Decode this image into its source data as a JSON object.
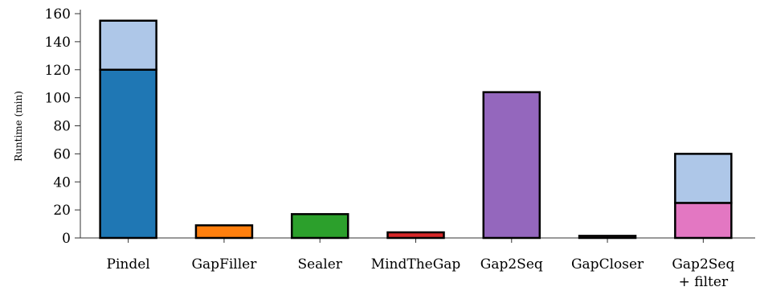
{
  "chart_data": {
    "type": "bar",
    "stacked": true,
    "title": "",
    "xlabel": "",
    "ylabel": "Runtime (min)",
    "ylim": [
      0,
      160
    ],
    "yticks": [
      0,
      20,
      40,
      60,
      80,
      100,
      120,
      140,
      160
    ],
    "grid": false,
    "legend": "none",
    "categories": [
      [
        "Pindel"
      ],
      [
        "GapFiller"
      ],
      [
        "Sealer"
      ],
      [
        "MindTheGap"
      ],
      [
        "Gap2Seq"
      ],
      [
        "GapCloser"
      ],
      [
        "Gap2Seq",
        "+ filter"
      ]
    ],
    "bars": [
      {
        "segments": [
          {
            "value": 120,
            "color": "#1f77b4"
          },
          {
            "value": 35,
            "color": "#aec7e8"
          }
        ]
      },
      {
        "segments": [
          {
            "value": 9,
            "color": "#ff7f0e"
          }
        ]
      },
      {
        "segments": [
          {
            "value": 17,
            "color": "#2ca02c"
          }
        ]
      },
      {
        "segments": [
          {
            "value": 4,
            "color": "#d62728"
          }
        ]
      },
      {
        "segments": [
          {
            "value": 104,
            "color": "#9467bd"
          }
        ]
      },
      {
        "segments": [
          {
            "value": 1.5,
            "color": "#8c564b"
          }
        ]
      },
      {
        "segments": [
          {
            "value": 25,
            "color": "#e377c2"
          },
          {
            "value": 35,
            "color": "#aec7e8"
          }
        ]
      }
    ]
  }
}
